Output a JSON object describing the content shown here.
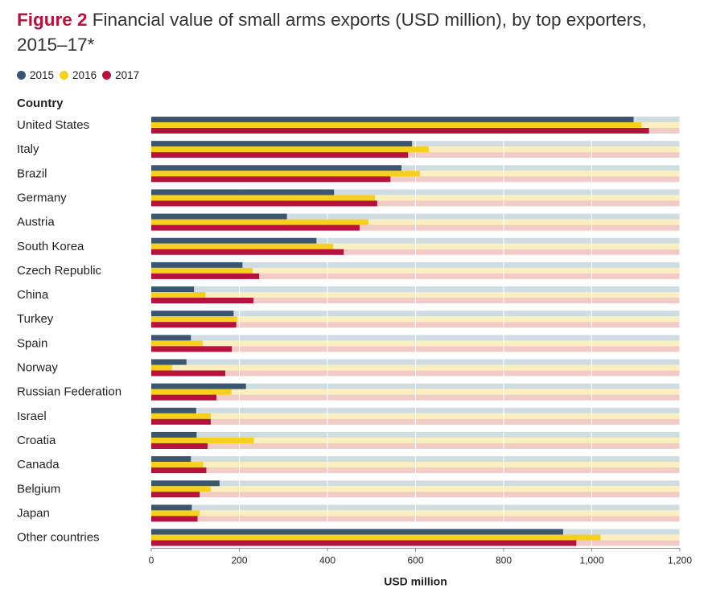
{
  "title": {
    "figure_label": "Figure 2",
    "text": "Financial value of small arms exports (USD million), by top exporters, 2015–17*"
  },
  "colors": {
    "2015": "#3a5670",
    "2016": "#f7cf1d",
    "2017": "#b5123e",
    "bg_2015": "#cfdde3",
    "bg_2016": "#fbefc0",
    "bg_2017": "#f2cbc7"
  },
  "chart_data": {
    "type": "bar",
    "orientation": "horizontal",
    "title": "Financial value of small arms exports (USD million), by top exporters, 2015–17*",
    "category_header": "Country",
    "xlabel": "USD million",
    "xlim": [
      0,
      1200
    ],
    "ticks": [
      0,
      200,
      400,
      600,
      800,
      1000,
      1200
    ],
    "tick_labels": [
      "0",
      "200",
      "400",
      "600",
      "800",
      "1,000",
      "1,200"
    ],
    "grid": true,
    "legend_position": "top-left",
    "categories": [
      "United States",
      "Italy",
      "Brazil",
      "Germany",
      "Austria",
      "South Korea",
      "Czech Republic",
      "China",
      "Turkey",
      "Spain",
      "Norway",
      "Russian Federation",
      "Israel",
      "Croatia",
      "Canada",
      "Belgium",
      "Japan",
      "Other countries"
    ],
    "series": [
      {
        "name": "2015",
        "values": [
          1095,
          592,
          568,
          415,
          308,
          375,
          207,
          97,
          187,
          90,
          80,
          215,
          102,
          103,
          90,
          155,
          92,
          935
        ]
      },
      {
        "name": "2016",
        "values": [
          1113,
          630,
          610,
          508,
          493,
          413,
          230,
          123,
          195,
          117,
          47,
          182,
          135,
          233,
          118,
          135,
          110,
          1020
        ]
      },
      {
        "name": "2017",
        "values": [
          1130,
          583,
          543,
          513,
          473,
          437,
          245,
          232,
          193,
          183,
          168,
          148,
          135,
          128,
          125,
          110,
          105,
          965
        ]
      }
    ]
  }
}
